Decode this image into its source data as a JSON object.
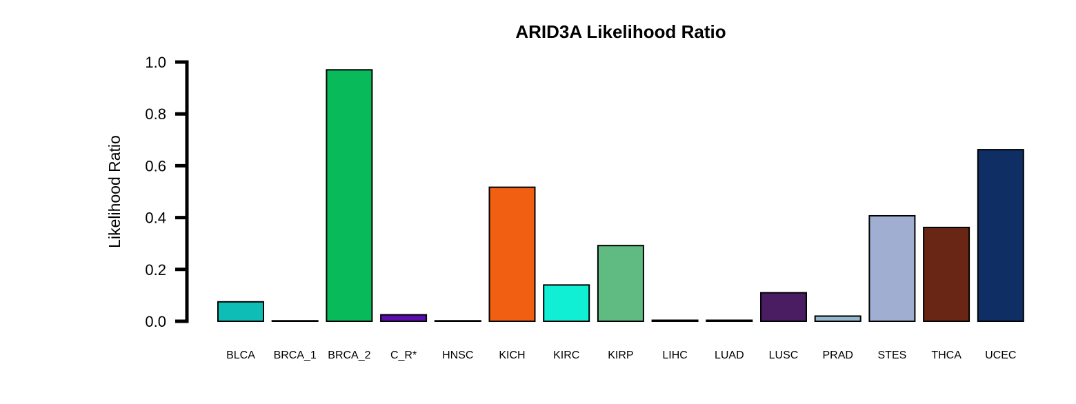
{
  "chart_data": {
    "type": "bar",
    "title": "ARID3A Likelihood Ratio",
    "xlabel": "",
    "ylabel": "Likelihood Ratio",
    "ylim": [
      0,
      1.0
    ],
    "yticks": [
      "0.0",
      "0.2",
      "0.4",
      "0.6",
      "0.8",
      "1.0"
    ],
    "grid": false,
    "categories": [
      "BLCA",
      "BRCA_1",
      "BRCA_2",
      "C_R*",
      "HNSC",
      "KICH",
      "KIRC",
      "KIRP",
      "LIHC",
      "LUAD",
      "LUSC",
      "PRAD",
      "STES",
      "THCA",
      "UCEC"
    ],
    "values": [
      0.075,
      0.002,
      0.97,
      0.025,
      0.002,
      0.517,
      0.14,
      0.292,
      0.004,
      0.004,
      0.11,
      0.02,
      0.407,
      0.362,
      0.662
    ],
    "colors": [
      "#0EBDB6",
      "#333333",
      "#08BA5A",
      "#5B0DAE",
      "#333333",
      "#F16012",
      "#10EED4",
      "#60BB82",
      "#111111",
      "#111111",
      "#4A1D62",
      "#93B7CC",
      "#A0AED2",
      "#6A2614",
      "#0E2E64"
    ]
  }
}
